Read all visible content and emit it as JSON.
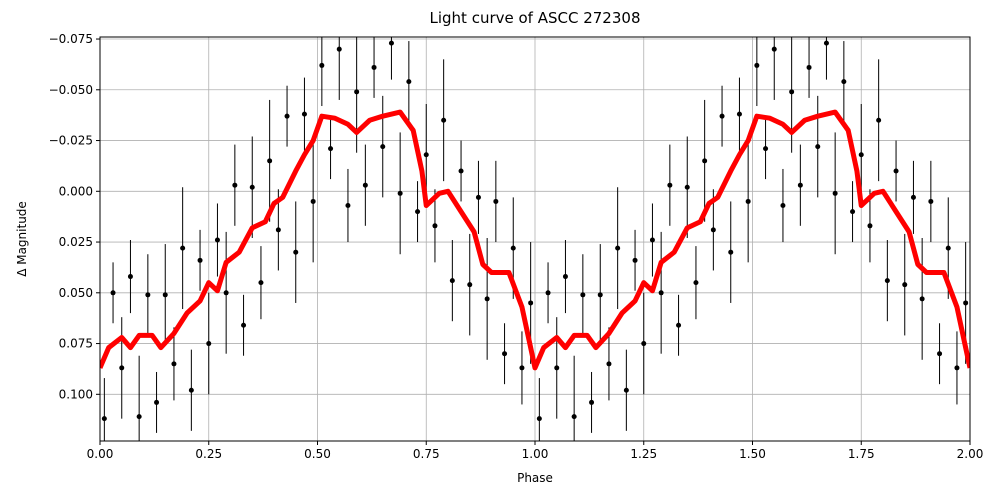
{
  "chart_data": {
    "type": "scatter",
    "title": "Light curve of ASCC 272308",
    "xlabel": "Phase",
    "ylabel": "Δ Magnitude",
    "xlim": [
      0,
      2
    ],
    "ylim": [
      0.123,
      -0.076
    ],
    "grid": true,
    "xticks": [
      {
        "value": 0,
        "label": "0.00"
      },
      {
        "value": 0.25,
        "label": "0.25"
      },
      {
        "value": 0.5,
        "label": "0.50"
      },
      {
        "value": 0.75,
        "label": "0.75"
      },
      {
        "value": 1,
        "label": "1.00"
      },
      {
        "value": 1.25,
        "label": "1.25"
      },
      {
        "value": 1.5,
        "label": "1.50"
      },
      {
        "value": 1.75,
        "label": "1.75"
      },
      {
        "value": 2,
        "label": "2.00"
      }
    ],
    "yticks": [
      {
        "value": -0.075,
        "label": "−0.075"
      },
      {
        "value": -0.05,
        "label": "−0.050"
      },
      {
        "value": -0.025,
        "label": "−0.025"
      },
      {
        "value": 0,
        "label": "0.000"
      },
      {
        "value": 0.025,
        "label": "0.025"
      },
      {
        "value": 0.05,
        "label": "0.050"
      },
      {
        "value": 0.075,
        "label": "0.075"
      },
      {
        "value": 0.1,
        "label": "0.100"
      }
    ],
    "points": {
      "color": "#000000",
      "x": [
        0.01,
        0.03,
        0.05,
        0.07,
        0.09,
        0.11,
        0.13,
        0.15,
        0.17,
        0.19,
        0.21,
        0.23,
        0.25,
        0.27,
        0.29,
        0.31,
        0.33,
        0.35,
        0.37,
        0.39,
        0.41,
        0.43,
        0.45,
        0.47,
        0.49,
        0.51,
        0.53,
        0.55,
        0.57,
        0.59,
        0.61,
        0.63,
        0.65,
        0.67,
        0.69,
        0.71,
        0.73,
        0.75,
        0.77,
        0.79,
        0.81,
        0.83,
        0.85,
        0.87,
        0.89,
        0.91,
        0.93,
        0.95,
        0.97,
        0.99,
        1.01,
        1.03,
        1.05,
        1.07,
        1.09,
        1.11,
        1.13,
        1.15,
        1.17,
        1.19,
        1.21,
        1.23,
        1.25,
        1.27,
        1.29,
        1.31,
        1.33,
        1.35,
        1.37,
        1.39,
        1.41,
        1.43,
        1.45,
        1.47,
        1.49,
        1.51,
        1.53,
        1.55,
        1.57,
        1.59,
        1.61,
        1.63,
        1.65,
        1.67,
        1.69,
        1.71,
        1.73,
        1.75,
        1.77,
        1.79,
        1.81,
        1.83,
        1.85,
        1.87,
        1.89,
        1.91,
        1.93,
        1.95,
        1.97,
        1.99
      ],
      "y": [
        0.112,
        0.05,
        0.087,
        0.042,
        0.111,
        0.051,
        0.104,
        0.051,
        0.085,
        0.028,
        0.098,
        0.034,
        0.075,
        0.024,
        0.05,
        -0.003,
        0.066,
        -0.002,
        0.045,
        -0.015,
        0.019,
        -0.037,
        0.03,
        -0.038,
        0.005,
        -0.062,
        -0.021,
        -0.07,
        0.007,
        -0.049,
        -0.003,
        -0.061,
        -0.022,
        -0.073,
        0.001,
        -0.054,
        0.01,
        -0.018,
        0.017,
        -0.035,
        0.044,
        -0.01,
        0.046,
        0.003,
        0.053,
        0.005,
        0.08,
        0.028,
        0.087,
        0.055,
        0.112,
        0.05,
        0.087,
        0.042,
        0.111,
        0.051,
        0.104,
        0.051,
        0.085,
        0.028,
        0.098,
        0.034,
        0.075,
        0.024,
        0.05,
        -0.003,
        0.066,
        -0.002,
        0.045,
        -0.015,
        0.019,
        -0.037,
        0.03,
        -0.038,
        0.005,
        -0.062,
        -0.021,
        -0.07,
        0.007,
        -0.049,
        -0.003,
        -0.061,
        -0.022,
        -0.073,
        0.001,
        -0.054,
        0.01,
        -0.018,
        0.017,
        -0.035,
        0.044,
        -0.01,
        0.046,
        0.003,
        0.053,
        0.005,
        0.08,
        0.028,
        0.087,
        0.055
      ],
      "err": [
        0.02,
        0.015,
        0.025,
        0.018,
        0.03,
        0.02,
        0.015,
        0.025,
        0.018,
        0.03,
        0.02,
        0.015,
        0.025,
        0.018,
        0.03,
        0.02,
        0.015,
        0.025,
        0.018,
        0.03,
        0.02,
        0.015,
        0.025,
        0.018,
        0.03,
        0.02,
        0.015,
        0.025,
        0.018,
        0.03,
        0.02,
        0.015,
        0.025,
        0.018,
        0.03,
        0.02,
        0.015,
        0.025,
        0.018,
        0.03,
        0.02,
        0.015,
        0.025,
        0.018,
        0.03,
        0.02,
        0.015,
        0.025,
        0.018,
        0.03,
        0.02,
        0.015,
        0.025,
        0.018,
        0.03,
        0.02,
        0.015,
        0.025,
        0.018,
        0.03,
        0.02,
        0.015,
        0.025,
        0.018,
        0.03,
        0.02,
        0.015,
        0.025,
        0.018,
        0.03,
        0.02,
        0.015,
        0.025,
        0.018,
        0.03,
        0.02,
        0.015,
        0.025,
        0.018,
        0.03,
        0.02,
        0.015,
        0.025,
        0.018,
        0.03,
        0.02,
        0.015,
        0.025,
        0.018,
        0.03,
        0.02,
        0.015,
        0.025,
        0.018,
        0.03,
        0.02,
        0.015,
        0.025,
        0.018,
        0.03
      ]
    },
    "trend": {
      "color": "#ff0000",
      "x": [
        0,
        0.02,
        0.05,
        0.07,
        0.09,
        0.12,
        0.14,
        0.17,
        0.2,
        0.23,
        0.25,
        0.27,
        0.29,
        0.32,
        0.35,
        0.38,
        0.4,
        0.42,
        0.45,
        0.47,
        0.49,
        0.51,
        0.54,
        0.57,
        0.59,
        0.62,
        0.65,
        0.69,
        0.72,
        0.74,
        0.75,
        0.78,
        0.8,
        0.83,
        0.86,
        0.88,
        0.9,
        0.94,
        0.97,
        1,
        1.02,
        1.05,
        1.07,
        1.09,
        1.12,
        1.14,
        1.17,
        1.2,
        1.23,
        1.25,
        1.27,
        1.29,
        1.32,
        1.35,
        1.38,
        1.4,
        1.42,
        1.45,
        1.47,
        1.49,
        1.51,
        1.54,
        1.57,
        1.59,
        1.62,
        1.65,
        1.69,
        1.72,
        1.74,
        1.75,
        1.78,
        1.8,
        1.83,
        1.86,
        1.88,
        1.9,
        1.94,
        1.97,
        2
      ],
      "y": [
        0.087,
        0.077,
        0.072,
        0.077,
        0.071,
        0.071,
        0.077,
        0.07,
        0.06,
        0.054,
        0.045,
        0.049,
        0.035,
        0.03,
        0.018,
        0.015,
        0.006,
        0.003,
        -0.01,
        -0.018,
        -0.025,
        -0.037,
        -0.036,
        -0.033,
        -0.029,
        -0.035,
        -0.037,
        -0.039,
        -0.03,
        -0.01,
        0.007,
        0.001,
        0,
        0.01,
        0.02,
        0.036,
        0.04,
        0.04,
        0.057,
        0.087,
        0.077,
        0.072,
        0.077,
        0.071,
        0.071,
        0.077,
        0.07,
        0.06,
        0.054,
        0.045,
        0.049,
        0.035,
        0.03,
        0.018,
        0.015,
        0.006,
        0.003,
        -0.01,
        -0.018,
        -0.025,
        -0.037,
        -0.036,
        -0.033,
        -0.029,
        -0.035,
        -0.037,
        -0.039,
        -0.03,
        -0.01,
        0.007,
        0.001,
        0,
        0.01,
        0.02,
        0.036,
        0.04,
        0.04,
        0.057,
        0.087
      ]
    }
  }
}
